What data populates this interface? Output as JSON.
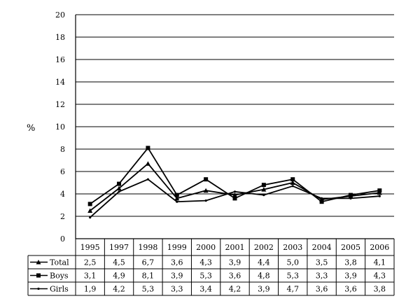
{
  "chart_data": {
    "type": "line",
    "title": "",
    "xlabel": "",
    "ylabel": "%",
    "ylim": [
      0,
      20
    ],
    "yticks": [
      "0",
      "2",
      "4",
      "6",
      "8",
      "10",
      "12",
      "14",
      "16",
      "18",
      "20"
    ],
    "grid": true,
    "legend": "data-table-left",
    "categories": [
      "1995",
      "1997",
      "1998",
      "1999",
      "2000",
      "2001",
      "2002",
      "2003",
      "2004",
      "2005",
      "2006"
    ],
    "series": [
      {
        "name": "Total",
        "marker": "triangle",
        "values": [
          2.5,
          4.5,
          6.7,
          3.6,
          4.3,
          3.9,
          4.4,
          5.0,
          3.5,
          3.8,
          4.1
        ],
        "labels": [
          "2,5",
          "4,5",
          "6,7",
          "3,6",
          "4,3",
          "3,9",
          "4,4",
          "5,0",
          "3,5",
          "3,8",
          "4,1"
        ]
      },
      {
        "name": "Boys",
        "marker": "square",
        "values": [
          3.1,
          4.9,
          8.1,
          3.9,
          5.3,
          3.6,
          4.8,
          5.3,
          3.3,
          3.9,
          4.3
        ],
        "labels": [
          "3,1",
          "4,9",
          "8,1",
          "3,9",
          "5,3",
          "3,6",
          "4,8",
          "5,3",
          "3,3",
          "3,9",
          "4,3"
        ]
      },
      {
        "name": "Girls",
        "marker": "dash",
        "values": [
          1.9,
          4.2,
          5.3,
          3.3,
          3.4,
          4.2,
          3.9,
          4.7,
          3.6,
          3.6,
          3.8
        ],
        "labels": [
          "1,9",
          "4,2",
          "5,3",
          "3,3",
          "3,4",
          "4,2",
          "3,9",
          "4,7",
          "3,6",
          "3,6",
          "3,8"
        ]
      }
    ],
    "colors": {
      "line": "#000000",
      "grid": "#000000",
      "background": "#ffffff"
    }
  }
}
